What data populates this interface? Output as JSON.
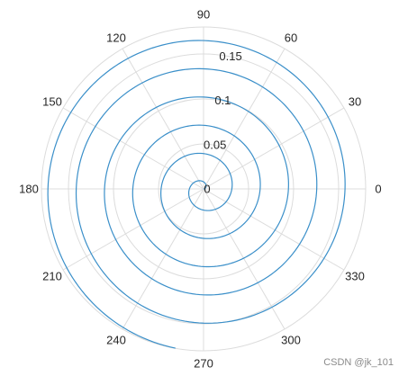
{
  "chart_data": {
    "type": "polar-line",
    "theta_ticks": [
      0,
      30,
      60,
      90,
      120,
      150,
      180,
      210,
      240,
      270,
      300,
      330
    ],
    "r_ticks": [
      0,
      0.05,
      0.1,
      0.15
    ],
    "r_tick_labels": [
      "0",
      "0.05",
      "0.1",
      "0.15"
    ],
    "r_max": 0.18,
    "grid": true,
    "series": [
      {
        "color": "#3a8fc9",
        "equation": "r = 0.005 * theta (theta in radians)",
        "theta_range_deg": [
          0,
          2060
        ],
        "theta_step_deg": 2
      }
    ]
  },
  "watermark": "CSDN @jk_101"
}
